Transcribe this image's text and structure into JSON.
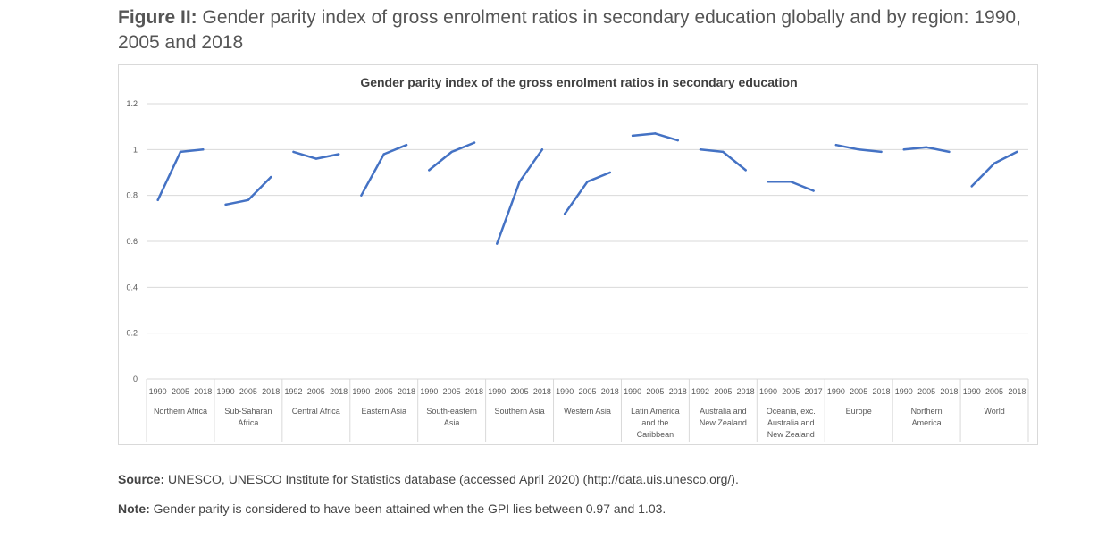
{
  "figure": {
    "label": "Figure II:",
    "title": "Gender parity index of gross enrolment ratios in secondary education globally and by region: 1990, 2005 and 2018"
  },
  "source": {
    "label": "Source:",
    "text": "UNESCO, UNESCO Institute for Statistics database (accessed April 2020) (http://data.uis.unesco.org/)."
  },
  "note": {
    "label": "Note:",
    "text": "Gender parity is considered to have been attained when the GPI lies between 0.97 and 1.03."
  },
  "colors": {
    "line": "#4472c4",
    "grid": "#d9d9d9",
    "axis_text": "#595959"
  },
  "chart_data": {
    "type": "line",
    "title": "Gender parity index of the gross enrolment ratios in secondary education",
    "xlabel": "",
    "ylabel": "",
    "ylim": [
      0,
      1.2
    ],
    "yticks": [
      "0",
      "0.2",
      "0.4",
      "0.6",
      "0.8",
      "1",
      "1.2"
    ],
    "grid": true,
    "legend": "none",
    "groups": [
      {
        "label": [
          "Northern Africa"
        ],
        "years": [
          "1990",
          "2005",
          "2018"
        ],
        "values": [
          0.78,
          0.99,
          1.0
        ]
      },
      {
        "label": [
          "Sub-Saharan",
          "Africa"
        ],
        "years": [
          "1990",
          "2005",
          "2018"
        ],
        "values": [
          0.76,
          0.78,
          0.88
        ]
      },
      {
        "label": [
          "Central Africa"
        ],
        "years": [
          "1992",
          "2005",
          "2018"
        ],
        "values": [
          0.99,
          0.96,
          0.98
        ]
      },
      {
        "label": [
          "Eastern Asia"
        ],
        "years": [
          "1990",
          "2005",
          "2018"
        ],
        "values": [
          0.8,
          0.98,
          1.02
        ]
      },
      {
        "label": [
          "South-eastern",
          "Asia"
        ],
        "years": [
          "1990",
          "2005",
          "2018"
        ],
        "values": [
          0.91,
          0.99,
          1.03
        ]
      },
      {
        "label": [
          "Southern Asia"
        ],
        "years": [
          "1990",
          "2005",
          "2018"
        ],
        "values": [
          0.59,
          0.86,
          1.0
        ]
      },
      {
        "label": [
          "Western Asia"
        ],
        "years": [
          "1990",
          "2005",
          "2018"
        ],
        "values": [
          0.72,
          0.86,
          0.9
        ]
      },
      {
        "label": [
          "Latin America",
          "and the",
          "Caribbean"
        ],
        "years": [
          "1990",
          "2005",
          "2018"
        ],
        "values": [
          1.06,
          1.07,
          1.04
        ]
      },
      {
        "label": [
          "Australia and",
          "New Zealand"
        ],
        "years": [
          "1992",
          "2005",
          "2018"
        ],
        "values": [
          1.0,
          0.99,
          0.91
        ]
      },
      {
        "label": [
          "Oceania, exc.",
          "Australia and",
          "New Zealand"
        ],
        "years": [
          "1990",
          "2005",
          "2017"
        ],
        "values": [
          0.86,
          0.86,
          0.82
        ]
      },
      {
        "label": [
          "Europe"
        ],
        "years": [
          "1990",
          "2005",
          "2018"
        ],
        "values": [
          1.02,
          1.0,
          0.99
        ]
      },
      {
        "label": [
          "Northern",
          "America"
        ],
        "years": [
          "1990",
          "2005",
          "2018"
        ],
        "values": [
          1.0,
          1.01,
          0.99
        ]
      },
      {
        "label": [
          "World"
        ],
        "years": [
          "1990",
          "2005",
          "2018"
        ],
        "values": [
          0.84,
          0.94,
          0.99
        ]
      }
    ]
  }
}
